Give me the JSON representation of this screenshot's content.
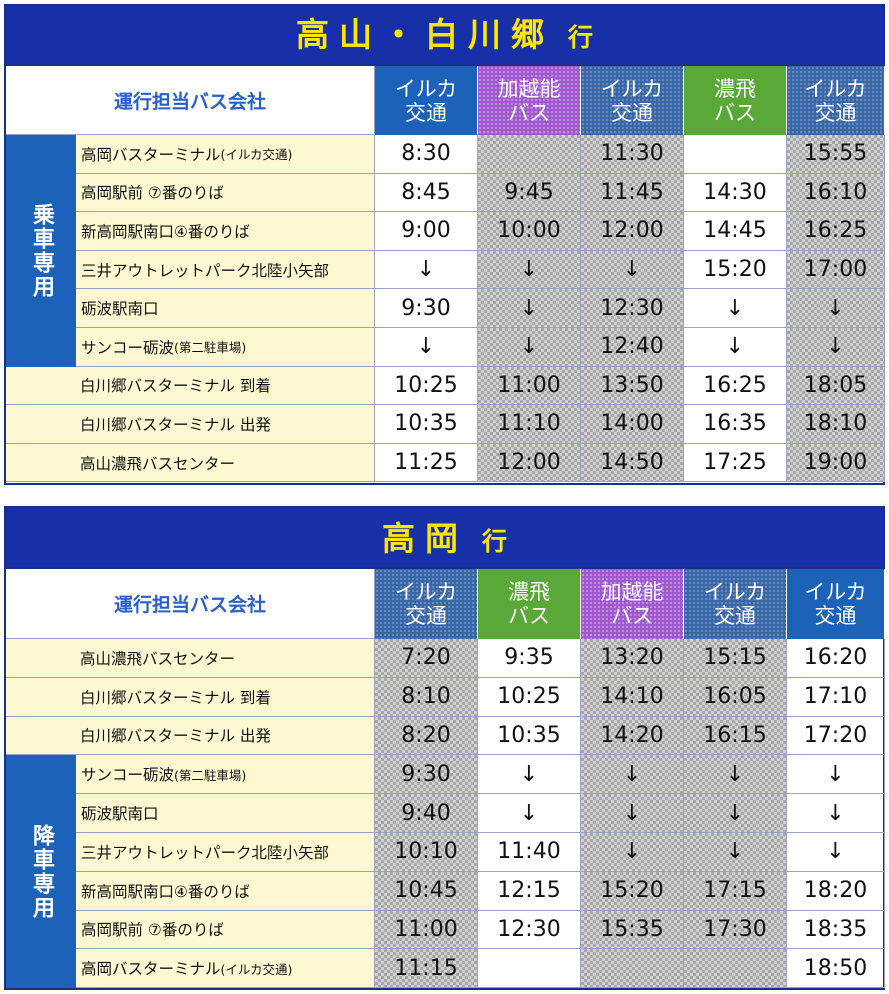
{
  "table1": {
    "title": "高山・白川郷",
    "title_suffix": "行",
    "header_label": "運行担当バス会社",
    "operators": [
      {
        "line1": "イルカ",
        "line2": "交通",
        "type": "iruka"
      },
      {
        "line1": "加越能",
        "line2": "バス",
        "type": "kaetsu"
      },
      {
        "line1": "イルカ",
        "line2": "交通",
        "type": "iruka-gray"
      },
      {
        "line1": "濃飛",
        "line2": "バス",
        "type": "nohi"
      },
      {
        "line1": "イルカ",
        "line2": "交通",
        "type": "iruka-gray"
      }
    ],
    "section_label": "乗車専用",
    "rows": [
      {
        "stop": "高岡バスターミナル",
        "note": "(イルカ交通)",
        "times": [
          "8:30",
          "",
          "11:30",
          "",
          "15:55"
        ],
        "section": true
      },
      {
        "stop": "高岡駅前 ⑦番のりば",
        "times": [
          "8:45",
          "9:45",
          "11:45",
          "14:30",
          "16:10"
        ],
        "section": true
      },
      {
        "stop": "新高岡駅南口④番のりば",
        "times": [
          "9:00",
          "10:00",
          "12:00",
          "14:45",
          "16:25"
        ],
        "section": true
      },
      {
        "stop": "三井アウトレットパーク北陸小矢部",
        "times": [
          "↓",
          "↓",
          "↓",
          "15:20",
          "17:00"
        ],
        "section": true
      },
      {
        "stop": "砺波駅南口",
        "times": [
          "9:30",
          "↓",
          "12:30",
          "↓",
          "↓"
        ],
        "section": true
      },
      {
        "stop": "サンコー砺波",
        "note": "(第二駐車場)",
        "times": [
          "↓",
          "↓",
          "12:40",
          "↓",
          "↓"
        ],
        "section": true
      },
      {
        "stop": "白川郷バスターミナル 到着",
        "times": [
          "10:25",
          "11:00",
          "13:50",
          "16:25",
          "18:05"
        ],
        "section": false
      },
      {
        "stop": "白川郷バスターミナル 出発",
        "times": [
          "10:35",
          "11:10",
          "14:00",
          "16:35",
          "18:10"
        ],
        "section": false
      },
      {
        "stop": "高山濃飛バスセンター",
        "times": [
          "11:25",
          "12:00",
          "14:50",
          "17:25",
          "19:00"
        ],
        "section": false
      }
    ]
  },
  "table2": {
    "title": "高岡",
    "title_suffix": "行",
    "header_label": "運行担当バス会社",
    "operators": [
      {
        "line1": "イルカ",
        "line2": "交通",
        "type": "iruka-gray"
      },
      {
        "line1": "濃飛",
        "line2": "バス",
        "type": "nohi"
      },
      {
        "line1": "加越能",
        "line2": "バス",
        "type": "kaetsu"
      },
      {
        "line1": "イルカ",
        "line2": "交通",
        "type": "iruka-gray"
      },
      {
        "line1": "イルカ",
        "line2": "交通",
        "type": "iruka"
      }
    ],
    "section_label": "降車専用",
    "rows": [
      {
        "stop": "高山濃飛バスセンター",
        "times": [
          "7:20",
          "9:35",
          "13:20",
          "15:15",
          "16:20"
        ],
        "section": false
      },
      {
        "stop": "白川郷バスターミナル 到着",
        "times": [
          "8:10",
          "10:25",
          "14:10",
          "16:05",
          "17:10"
        ],
        "section": false
      },
      {
        "stop": "白川郷バスターミナル 出発",
        "times": [
          "8:20",
          "10:35",
          "14:20",
          "16:15",
          "17:20"
        ],
        "section": false
      },
      {
        "stop": "サンコー砺波",
        "note": "(第二駐車場)",
        "times": [
          "9:30",
          "↓",
          "↓",
          "↓",
          "↓"
        ],
        "section": true
      },
      {
        "stop": "砺波駅南口",
        "times": [
          "9:40",
          "↓",
          "↓",
          "↓",
          "↓"
        ],
        "section": true
      },
      {
        "stop": "三井アウトレットパーク北陸小矢部",
        "times": [
          "10:10",
          "11:40",
          "↓",
          "↓",
          "↓"
        ],
        "section": true
      },
      {
        "stop": "新高岡駅南口④番のりば",
        "times": [
          "10:45",
          "12:15",
          "15:20",
          "17:15",
          "18:20"
        ],
        "section": true
      },
      {
        "stop": "高岡駅前 ⑦番のりば",
        "times": [
          "11:00",
          "12:30",
          "15:35",
          "17:30",
          "18:35"
        ],
        "section": true
      },
      {
        "stop": "高岡バスターミナル",
        "note": "(イルカ交通)",
        "times": [
          "11:15",
          "",
          "",
          "",
          "18:50"
        ],
        "section": true
      }
    ]
  },
  "gray_columns": {
    "table1": [
      1,
      2,
      4
    ],
    "table2": [
      0,
      2,
      3
    ]
  }
}
